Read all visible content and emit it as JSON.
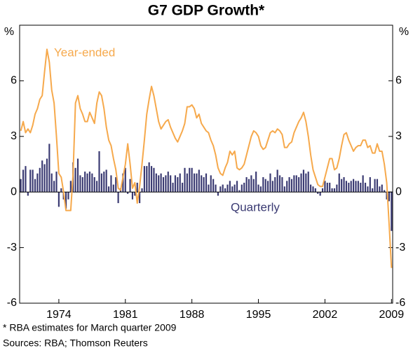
{
  "chart_data": {
    "type": "bar",
    "title": "G7 GDP Growth*",
    "y_unit": "%",
    "footnote": "*    RBA estimates for March quarter 2009",
    "source": "Sources: RBA; Thomson Reuters",
    "categories": [
      null,
      null,
      null,
      null,
      null,
      null,
      null,
      null,
      null,
      null,
      null,
      null,
      null,
      null,
      null,
      null,
      "1974",
      null,
      null,
      null,
      null,
      null,
      null,
      null,
      null,
      null,
      null,
      null,
      null,
      null,
      null,
      null,
      null,
      null,
      null,
      null,
      null,
      null,
      null,
      null,
      null,
      null,
      null,
      null,
      "1981",
      null,
      null,
      null,
      null,
      null,
      null,
      null,
      null,
      null,
      null,
      null,
      null,
      null,
      null,
      null,
      null,
      null,
      null,
      null,
      null,
      null,
      null,
      null,
      null,
      null,
      null,
      null,
      "1988",
      null,
      null,
      null,
      null,
      null,
      null,
      null,
      null,
      null,
      null,
      null,
      null,
      null,
      null,
      null,
      null,
      null,
      null,
      null,
      null,
      null,
      null,
      null,
      null,
      null,
      null,
      null,
      "1995",
      null,
      null,
      null,
      null,
      null,
      null,
      null,
      null,
      null,
      null,
      null,
      null,
      null,
      null,
      null,
      null,
      null,
      null,
      null,
      null,
      null,
      null,
      null,
      null,
      null,
      null,
      null,
      "2002",
      null,
      null,
      null,
      null,
      null,
      null,
      null,
      null,
      null,
      null,
      null,
      null,
      null,
      null,
      null,
      null,
      null,
      null,
      null,
      null,
      null,
      null,
      null,
      null,
      null,
      null,
      null,
      "2009"
    ],
    "series": [
      {
        "name": "Year-ended",
        "type": "line",
        "color": "#f6a94c",
        "values": [
          3.3,
          3.8,
          3.2,
          3.4,
          3.2,
          3.6,
          4.2,
          4.5,
          5.0,
          5.2,
          6.5,
          7.7,
          7.0,
          5.5,
          4.8,
          3.0,
          1.0,
          0.8,
          0.0,
          -1.0,
          -1.0,
          -1.0,
          1.0,
          4.8,
          5.2,
          4.5,
          4.2,
          3.8,
          3.8,
          4.3,
          4.0,
          3.7,
          4.8,
          5.4,
          5.2,
          4.5,
          3.5,
          2.8,
          2.5,
          1.8,
          1.2,
          0.2,
          0.1,
          0.8,
          1.5,
          2.6,
          1.5,
          0.2,
          0.5,
          -0.6,
          0.3,
          1.5,
          2.8,
          4.2,
          5.0,
          5.7,
          5.2,
          4.5,
          3.8,
          3.4,
          3.6,
          3.8,
          3.9,
          3.5,
          3.2,
          2.9,
          2.7,
          3.0,
          3.3,
          3.7,
          4.6,
          4.6,
          4.7,
          4.5,
          4.0,
          4.2,
          3.7,
          3.5,
          3.3,
          3.2,
          2.8,
          2.5,
          2.0,
          1.3,
          1.0,
          0.9,
          1.3,
          1.6,
          2.2,
          2.0,
          2.2,
          1.3,
          1.2,
          1.3,
          1.5,
          2.0,
          2.5,
          3.0,
          3.3,
          3.2,
          3.0,
          2.5,
          2.3,
          2.4,
          2.8,
          3.2,
          3.3,
          3.2,
          3.4,
          3.3,
          3.1,
          2.4,
          2.4,
          2.6,
          2.7,
          3.2,
          3.5,
          3.8,
          4.0,
          4.3,
          3.8,
          3.0,
          2.0,
          1.2,
          0.8,
          0.4,
          0.3,
          0.3,
          0.8,
          1.3,
          1.8,
          1.8,
          1.2,
          1.3,
          1.8,
          2.5,
          3.1,
          3.2,
          2.8,
          2.5,
          2.2,
          2.4,
          2.5,
          2.5,
          2.8,
          2.8,
          2.4,
          2.5,
          2.1,
          2.1,
          2.6,
          2.2,
          2.2,
          1.5,
          0.5,
          -1.7,
          -4.1
        ]
      },
      {
        "name": "Quarterly",
        "type": "bar",
        "color": "#3a3a72",
        "values": [
          0.7,
          1.2,
          1.4,
          -0.2,
          1.2,
          1.2,
          0.7,
          1.0,
          1.3,
          1.7,
          1.5,
          1.8,
          2.6,
          1.0,
          0.6,
          1.1,
          -0.8,
          0.2,
          -0.4,
          -0.9,
          -0.4,
          0.6,
          1.6,
          1.3,
          1.8,
          0.9,
          0.8,
          1.1,
          1.0,
          1.1,
          1.0,
          0.8,
          0.6,
          2.2,
          1.0,
          1.1,
          1.2,
          0.3,
          0.9,
          0.4,
          0.8,
          -0.6,
          0.2,
          1.0,
          1.3,
          -0.1,
          0.7,
          -0.4,
          -0.2,
          0.5,
          -0.6,
          0.2,
          1.4,
          1.4,
          1.6,
          1.4,
          1.3,
          1.0,
          0.9,
          1.0,
          0.8,
          0.9,
          1.1,
          0.9,
          0.5,
          0.9,
          0.8,
          1.0,
          0.5,
          1.3,
          1.0,
          1.3,
          1.3,
          1.0,
          1.0,
          1.2,
          0.9,
          0.8,
          1.0,
          0.4,
          0.9,
          0.7,
          0.4,
          -0.2,
          0.3,
          0.4,
          0.2,
          0.4,
          0.6,
          0.3,
          0.4,
          0.6,
          0.1,
          0.4,
          0.5,
          0.8,
          0.7,
          0.9,
          0.7,
          1.1,
          0.4,
          0.3,
          0.8,
          0.7,
          0.6,
          1.0,
          0.6,
          0.8,
          1.2,
          0.9,
          0.8,
          0.3,
          0.6,
          0.8,
          0.7,
          0.9,
          0.9,
          0.8,
          1.0,
          1.2,
          1.0,
          1.1,
          0.4,
          0.3,
          0.2,
          -0.1,
          -0.2,
          0.2,
          0.6,
          0.5,
          0.5,
          0.2,
          0.2,
          0.4,
          1.0,
          0.7,
          0.8,
          0.6,
          0.5,
          0.6,
          0.7,
          0.6,
          0.6,
          0.5,
          0.9,
          0.5,
          0.3,
          0.8,
          0.2,
          0.7,
          0.7,
          0.3,
          0.4,
          0.1,
          -0.4,
          -0.5,
          -2.1
        ]
      }
    ],
    "ylim": [
      -6,
      9
    ],
    "yticks": [
      -6,
      -3,
      0,
      3,
      6
    ]
  }
}
